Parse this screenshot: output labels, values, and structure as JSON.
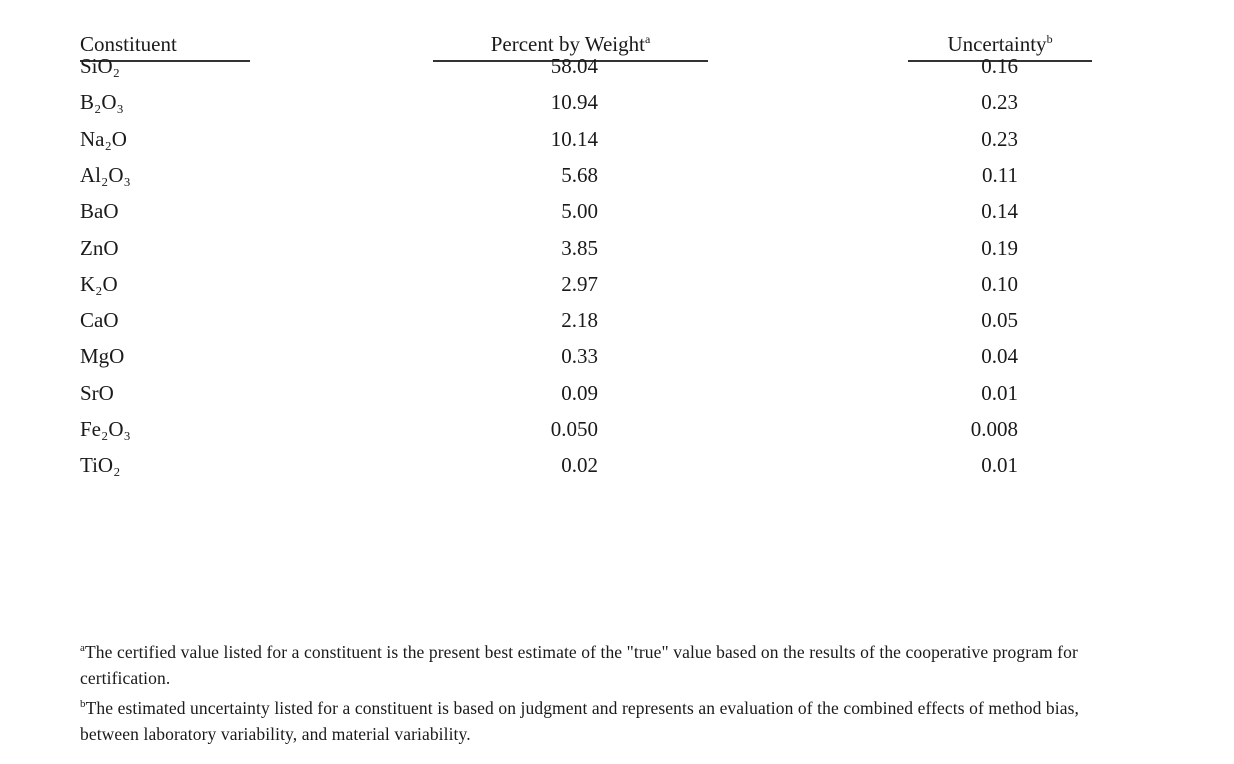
{
  "table": {
    "headers": [
      {
        "label": "Constituent",
        "mark": ""
      },
      {
        "label": "Percent by Weight",
        "mark": "a"
      },
      {
        "label": "Uncertainty",
        "mark": "b"
      }
    ],
    "rows": [
      {
        "constituent": "SiO₂",
        "percent": "58.04",
        "uncertainty": "0.16"
      },
      {
        "constituent": "B₂O₃",
        "percent": "10.94",
        "uncertainty": "0.23"
      },
      {
        "constituent": "Na₂O",
        "percent": "10.14",
        "uncertainty": "0.23"
      },
      {
        "constituent": "Al₂O₃",
        "percent": "5.68",
        "uncertainty": "0.11"
      },
      {
        "constituent": "BaO",
        "percent": "5.00",
        "uncertainty": "0.14"
      },
      {
        "constituent": "ZnO",
        "percent": "3.85",
        "uncertainty": "0.19"
      },
      {
        "constituent": "K₂O",
        "percent": "2.97",
        "uncertainty": "0.10"
      },
      {
        "constituent": "CaO",
        "percent": "2.18",
        "uncertainty": "0.05"
      },
      {
        "constituent": "MgO",
        "percent": "0.33",
        "uncertainty": "0.04"
      },
      {
        "constituent": "SrO",
        "percent": "0.09",
        "uncertainty": "0.01"
      },
      {
        "constituent": "Fe₂O₃",
        "percent": "0.050",
        "uncertainty": "0.008"
      },
      {
        "constituent": "TiO₂",
        "percent": "0.02",
        "uncertainty": "0.01"
      }
    ]
  },
  "footnotes": [
    {
      "mark": "a",
      "text": "The certified value listed for a constituent is the present best estimate of the \"true\" value based on the results of the cooperative program for certification."
    },
    {
      "mark": "b",
      "text": "The estimated uncertainty listed for a constituent is based on judgment and represents an evaluation of the combined effects of method bias, between laboratory variability, and material variability."
    }
  ]
}
